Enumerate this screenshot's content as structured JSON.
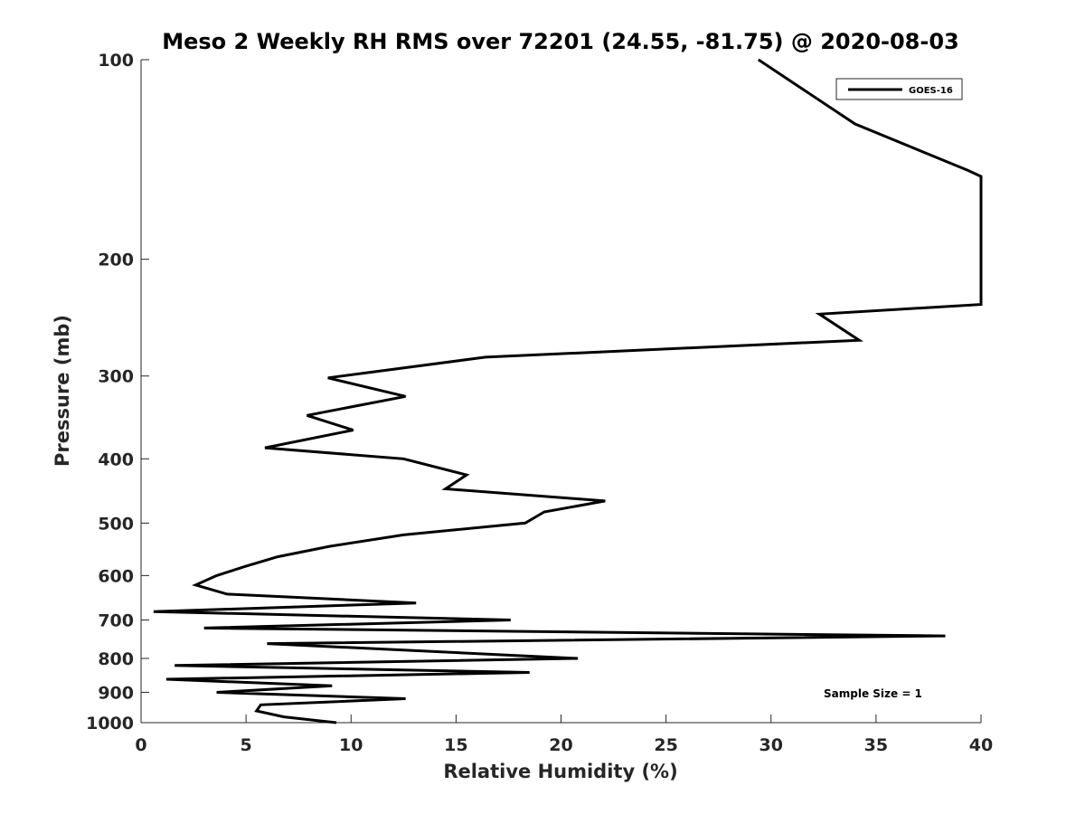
{
  "chart_data": {
    "type": "line",
    "title": "Meso 2 Weekly RH RMS over 72201 (24.55, -81.75) @ 2020-08-03",
    "xlabel": "Relative Humidity (%)",
    "ylabel": "Pressure (mb)",
    "xlim": [
      0,
      40
    ],
    "ylim": [
      100,
      1000
    ],
    "y_scale": "log",
    "y_reversed": true,
    "x_ticks": [
      0,
      5,
      10,
      15,
      20,
      25,
      30,
      35,
      40
    ],
    "y_ticks": [
      100,
      200,
      300,
      400,
      500,
      600,
      700,
      800,
      900,
      1000
    ],
    "legend": {
      "location": "top-right",
      "entries": [
        "GOES-16"
      ]
    },
    "annotation": "Sample Size = 1",
    "series": [
      {
        "name": "GOES-16",
        "color": "#000000",
        "points": [
          [
            29.4,
            100
          ],
          [
            34.0,
            125
          ],
          [
            39.4,
            147
          ],
          [
            40.0,
            150
          ],
          [
            40.0,
            234
          ],
          [
            32.3,
            242
          ],
          [
            34.2,
            265
          ],
          [
            16.4,
            281
          ],
          [
            8.9,
            302
          ],
          [
            12.6,
            322
          ],
          [
            7.9,
            344
          ],
          [
            10.1,
            362
          ],
          [
            5.9,
            385
          ],
          [
            12.5,
            400
          ],
          [
            15.5,
            423
          ],
          [
            14.5,
            444
          ],
          [
            22.1,
            463
          ],
          [
            19.2,
            481
          ],
          [
            18.3,
            500
          ],
          [
            12.5,
            521
          ],
          [
            9.0,
            542
          ],
          [
            6.5,
            562
          ],
          [
            4.9,
            582
          ],
          [
            3.6,
            600
          ],
          [
            2.6,
            620
          ],
          [
            4.1,
            640
          ],
          [
            13.1,
            660
          ],
          [
            0.6,
            680
          ],
          [
            17.6,
            700
          ],
          [
            3.0,
            720
          ],
          [
            38.3,
            740
          ],
          [
            6.0,
            760
          ],
          [
            20.8,
            800
          ],
          [
            1.6,
            820
          ],
          [
            18.5,
            840
          ],
          [
            1.2,
            860
          ],
          [
            9.1,
            880
          ],
          [
            3.6,
            900
          ],
          [
            12.6,
            920
          ],
          [
            5.7,
            940
          ],
          [
            5.5,
            960
          ],
          [
            6.8,
            980
          ],
          [
            9.3,
            1000
          ]
        ]
      }
    ]
  },
  "colors": {
    "line": "#000000",
    "axis": "#262626",
    "background": "#ffffff"
  }
}
